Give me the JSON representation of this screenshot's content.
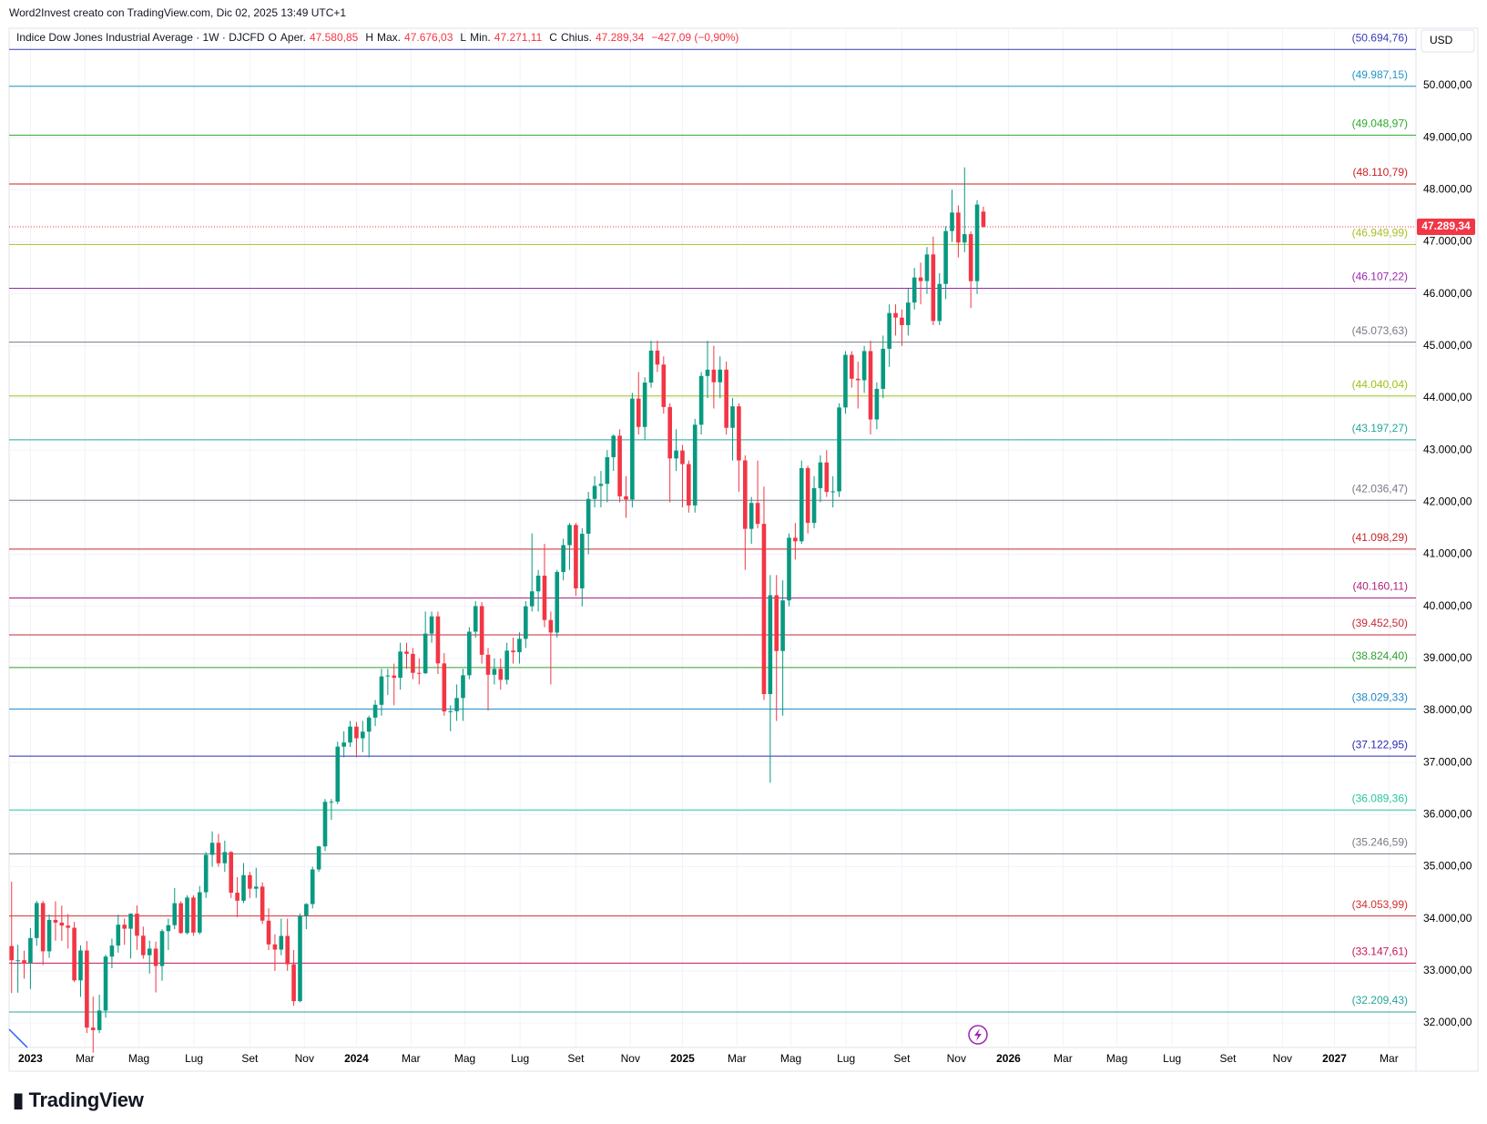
{
  "header": {
    "credit": "Word2Invest creato con TradingView.com, Dic 02, 2025 13:49 UTC+1"
  },
  "logo": "TradingView",
  "chart_data": {
    "type": "candlestick",
    "legend": {
      "name": "Indice Dow Jones Industrial Average · 1W · DJCFD",
      "items": [
        {
          "key": "O",
          "label": "Aper.",
          "value": "47.580,85"
        },
        {
          "key": "H",
          "label": "Max.",
          "value": "47.676,03"
        },
        {
          "key": "L",
          "label": "Min.",
          "value": "47.271,11"
        },
        {
          "key": "C",
          "label": "Chius.",
          "value": "47.289,34"
        }
      ],
      "change": "−427,09 (−0,90%)"
    },
    "currency": "USD",
    "up_color": "#089981",
    "down_color": "#f23645",
    "ylim": [
      31528,
      51102
    ],
    "xlim": [
      -0.4,
      224
    ],
    "yticks": [
      {
        "value": 32000,
        "label": "32.000,00"
      },
      {
        "value": 33000,
        "label": "33.000,00"
      },
      {
        "value": 34000,
        "label": "34.000,00"
      },
      {
        "value": 35000,
        "label": "35.000,00"
      },
      {
        "value": 36000,
        "label": "36.000,00"
      },
      {
        "value": 37000,
        "label": "37.000,00"
      },
      {
        "value": 38000,
        "label": "38.000,00"
      },
      {
        "value": 39000,
        "label": "39.000,00"
      },
      {
        "value": 40000,
        "label": "40.000,00"
      },
      {
        "value": 41000,
        "label": "41.000,00"
      },
      {
        "value": 42000,
        "label": "42.000,00"
      },
      {
        "value": 43000,
        "label": "43.000,00"
      },
      {
        "value": 44000,
        "label": "44.000,00"
      },
      {
        "value": 45000,
        "label": "45.000,00"
      },
      {
        "value": 46000,
        "label": "46.000,00"
      },
      {
        "value": 47000,
        "label": "47.000,00"
      },
      {
        "value": 48000,
        "label": "48.000,00"
      },
      {
        "value": 49000,
        "label": "49.000,00"
      },
      {
        "value": 50000,
        "label": "50.000,00"
      }
    ],
    "xticks": [
      {
        "value": 3,
        "label": "2023"
      },
      {
        "value": 11.7,
        "label": "Mar"
      },
      {
        "value": 20.3,
        "label": "Mag"
      },
      {
        "value": 29.1,
        "label": "Lug"
      },
      {
        "value": 38,
        "label": "Set"
      },
      {
        "value": 46.7,
        "label": "Nov"
      },
      {
        "value": 55,
        "label": "2024"
      },
      {
        "value": 63.7,
        "label": "Mar"
      },
      {
        "value": 72.3,
        "label": "Mag"
      },
      {
        "value": 81.1,
        "label": "Lug"
      },
      {
        "value": 90,
        "label": "Set"
      },
      {
        "value": 98.7,
        "label": "Nov"
      },
      {
        "value": 107,
        "label": "2025"
      },
      {
        "value": 115.7,
        "label": "Mar"
      },
      {
        "value": 124.3,
        "label": "Mag"
      },
      {
        "value": 133.1,
        "label": "Lug"
      },
      {
        "value": 142,
        "label": "Set"
      },
      {
        "value": 150.7,
        "label": "Nov"
      },
      {
        "value": 159,
        "label": "2026"
      },
      {
        "value": 167.7,
        "label": "Mar"
      },
      {
        "value": 176.3,
        "label": "Mag"
      },
      {
        "value": 185.1,
        "label": "Lug"
      },
      {
        "value": 194,
        "label": "Set"
      },
      {
        "value": 202.7,
        "label": "Nov"
      },
      {
        "value": 211,
        "label": "2027"
      },
      {
        "value": 219.7,
        "label": "Mar"
      }
    ],
    "levels": [
      {
        "value": 50694.76,
        "label": "(50.694,76)",
        "color": "#3a3ab8"
      },
      {
        "value": 49987.15,
        "label": "(49.987,15)",
        "color": "#2196c4"
      },
      {
        "value": 49048.97,
        "label": "(49.048,97)",
        "color": "#2ea82e"
      },
      {
        "value": 48110.79,
        "label": "(48.110,79)",
        "color": "#cc2222"
      },
      {
        "value": 46949.99,
        "label": "(46.949,99)",
        "color": "#a6c22a"
      },
      {
        "value": 46107.22,
        "label": "(46.107,22)",
        "color": "#9c27b0"
      },
      {
        "value": 45073.63,
        "label": "(45.073,63)",
        "color": "#787b86"
      },
      {
        "value": 44040.04,
        "label": "(44.040,04)",
        "color": "#9ac21a"
      },
      {
        "value": 43197.27,
        "label": "(43.197,27)",
        "color": "#26a69a"
      },
      {
        "value": 42036.47,
        "label": "(42.036,47)",
        "color": "#787b86"
      },
      {
        "value": 41098.29,
        "label": "(41.098,29)",
        "color": "#c62828"
      },
      {
        "value": 40160.11,
        "label": "(40.160,11)",
        "color": "#b0207c"
      },
      {
        "value": 39452.5,
        "label": "(39.452,50)",
        "color": "#c62838"
      },
      {
        "value": 38824.4,
        "label": "(38.824,40)",
        "color": "#30a030"
      },
      {
        "value": 38029.33,
        "label": "(38.029,33)",
        "color": "#2088c8"
      },
      {
        "value": 37122.95,
        "label": "(37.122,95)",
        "color": "#2a2ab0"
      },
      {
        "value": 36089.36,
        "label": "(36.089,36)",
        "color": "#26c6a0"
      },
      {
        "value": 35246.59,
        "label": "(35.246,59)",
        "color": "#787b86"
      },
      {
        "value": 34053.99,
        "label": "(34.053,99)",
        "color": "#d32f2f"
      },
      {
        "value": 33147.61,
        "label": "(33.147,61)",
        "color": "#c2185b"
      },
      {
        "value": 32209.43,
        "label": "(32.209,43)",
        "color": "#26a69a"
      }
    ],
    "last_price": {
      "value": 47289.34,
      "label": "47.289,34",
      "color": "#f23645"
    },
    "ohlc": [
      [
        33476,
        34712,
        32574,
        33203
      ],
      [
        33203,
        33500,
        32581,
        33204
      ],
      [
        33204,
        33387,
        32850,
        33147
      ],
      [
        33147,
        33820,
        32650,
        33630
      ],
      [
        33630,
        34343,
        33480,
        34302
      ],
      [
        34302,
        34342,
        33113,
        33375
      ],
      [
        33375,
        34082,
        33250,
        33978
      ],
      [
        33978,
        34335,
        33580,
        33926
      ],
      [
        33926,
        34252,
        33574,
        33869
      ],
      [
        33869,
        34092,
        33428,
        33827
      ],
      [
        33827,
        33940,
        32787,
        32817
      ],
      [
        32817,
        33491,
        32500,
        33391
      ],
      [
        33391,
        33572,
        31806,
        31910
      ],
      [
        31910,
        32504,
        31429,
        31862
      ],
      [
        31862,
        32540,
        31805,
        32238
      ],
      [
        32238,
        33311,
        32100,
        33274
      ],
      [
        33274,
        33620,
        33050,
        33485
      ],
      [
        33485,
        34082,
        33350,
        33886
      ],
      [
        33886,
        34000,
        33500,
        33809
      ],
      [
        33809,
        34104,
        33235,
        34098
      ],
      [
        34098,
        34257,
        33404,
        33674
      ],
      [
        33674,
        33850,
        33233,
        33301
      ],
      [
        33301,
        33580,
        32948,
        33427
      ],
      [
        33427,
        33560,
        32586,
        33093
      ],
      [
        33093,
        33800,
        32810,
        33763
      ],
      [
        33763,
        34000,
        33400,
        33877
      ],
      [
        33877,
        34589,
        33800,
        34299
      ],
      [
        34299,
        34335,
        33713,
        33727
      ],
      [
        33727,
        34450,
        33700,
        34408
      ],
      [
        34408,
        34450,
        33674,
        33735
      ],
      [
        33735,
        34630,
        33700,
        34509
      ],
      [
        34509,
        35280,
        34400,
        35228
      ],
      [
        35228,
        35679,
        35000,
        35459
      ],
      [
        35459,
        35630,
        35000,
        35066
      ],
      [
        35066,
        35500,
        34900,
        35281
      ],
      [
        35281,
        35300,
        34400,
        34501
      ],
      [
        34501,
        34800,
        34030,
        34347
      ],
      [
        34347,
        35070,
        34300,
        34838
      ],
      [
        34838,
        34900,
        34400,
        34577
      ],
      [
        34577,
        34979,
        34400,
        34618
      ],
      [
        34618,
        34700,
        33900,
        33964
      ],
      [
        33964,
        34200,
        33400,
        33508
      ],
      [
        33508,
        33700,
        33000,
        33408
      ],
      [
        33408,
        34000,
        33300,
        33670
      ],
      [
        33670,
        34000,
        33000,
        33127
      ],
      [
        33127,
        33400,
        32327,
        32418
      ],
      [
        32418,
        34100,
        32400,
        34061
      ],
      [
        34061,
        34300,
        33800,
        34283
      ],
      [
        34283,
        35000,
        34200,
        34947
      ],
      [
        34947,
        35400,
        34900,
        35390
      ],
      [
        35390,
        36300,
        35300,
        36246
      ],
      [
        36246,
        36300,
        35900,
        36248
      ],
      [
        36248,
        37400,
        36200,
        37306
      ],
      [
        37306,
        37600,
        37100,
        37385
      ],
      [
        37385,
        37800,
        37300,
        37690
      ],
      [
        37690,
        37780,
        37100,
        37466
      ],
      [
        37466,
        37800,
        37200,
        37593
      ],
      [
        37593,
        37900,
        37100,
        37863
      ],
      [
        37863,
        38200,
        37700,
        38109
      ],
      [
        38109,
        38800,
        37900,
        38654
      ],
      [
        38654,
        38800,
        38300,
        38671
      ],
      [
        38671,
        38900,
        38100,
        38628
      ],
      [
        38628,
        39300,
        38400,
        39131
      ],
      [
        39131,
        39300,
        38800,
        39087
      ],
      [
        39087,
        39200,
        38600,
        38723
      ],
      [
        38723,
        39000,
        38500,
        38715
      ],
      [
        38715,
        39900,
        38700,
        39476
      ],
      [
        39476,
        39900,
        39300,
        39807
      ],
      [
        39807,
        39900,
        38700,
        38904
      ],
      [
        38904,
        39100,
        37900,
        37983
      ],
      [
        37983,
        38100,
        37600,
        37986
      ],
      [
        37986,
        38500,
        37800,
        38240
      ],
      [
        38240,
        38800,
        37800,
        38676
      ],
      [
        38676,
        39600,
        38600,
        39513
      ],
      [
        39513,
        40100,
        39400,
        40004
      ],
      [
        40004,
        40080,
        38900,
        39070
      ],
      [
        39070,
        39200,
        38000,
        38686
      ],
      [
        38686,
        39000,
        38500,
        38799
      ],
      [
        38799,
        39000,
        38400,
        38589
      ],
      [
        38589,
        39300,
        38500,
        39150
      ],
      [
        39150,
        39400,
        38900,
        39119
      ],
      [
        39119,
        39500,
        38900,
        39376
      ],
      [
        39376,
        40100,
        39200,
        40001
      ],
      [
        40001,
        41400,
        39900,
        40288
      ],
      [
        40288,
        40700,
        39900,
        40589
      ],
      [
        40589,
        41200,
        39600,
        39737
      ],
      [
        39737,
        39900,
        38500,
        39497
      ],
      [
        39497,
        40700,
        39400,
        40660
      ],
      [
        40660,
        41300,
        40500,
        41175
      ],
      [
        41175,
        41600,
        40700,
        41563
      ],
      [
        41563,
        41600,
        40200,
        40345
      ],
      [
        40345,
        41500,
        40000,
        41394
      ],
      [
        41394,
        42200,
        41000,
        42063
      ],
      [
        42063,
        42500,
        41900,
        42313
      ],
      [
        42313,
        42600,
        41900,
        42352
      ],
      [
        42352,
        43000,
        42000,
        42864
      ],
      [
        42864,
        43300,
        42600,
        43276
      ],
      [
        43276,
        43400,
        42000,
        42114
      ],
      [
        42114,
        42500,
        41700,
        42052
      ],
      [
        42052,
        44100,
        41900,
        43989
      ],
      [
        43989,
        44500,
        43300,
        43445
      ],
      [
        43445,
        44400,
        43200,
        44297
      ],
      [
        44297,
        45100,
        44200,
        44911
      ],
      [
        44911,
        45100,
        44500,
        44643
      ],
      [
        44643,
        44800,
        43700,
        43828
      ],
      [
        43828,
        43900,
        42000,
        42840
      ],
      [
        42840,
        43400,
        42600,
        42992
      ],
      [
        42992,
        43100,
        41900,
        42732
      ],
      [
        42732,
        42800,
        41800,
        41938
      ],
      [
        41938,
        43600,
        41800,
        43488
      ],
      [
        43488,
        44500,
        43300,
        44424
      ],
      [
        44424,
        45100,
        44000,
        44545
      ],
      [
        44545,
        45000,
        43800,
        44303
      ],
      [
        44303,
        44800,
        44000,
        44546
      ],
      [
        44546,
        44700,
        43300,
        43428
      ],
      [
        43428,
        44000,
        42800,
        43841
      ],
      [
        43841,
        43900,
        42200,
        42802
      ],
      [
        42802,
        42900,
        40700,
        41488
      ],
      [
        41488,
        42100,
        41200,
        41985
      ],
      [
        41985,
        42800,
        41500,
        41584
      ],
      [
        41584,
        42300,
        38200,
        38315
      ],
      [
        38315,
        40600,
        36612,
        40213
      ],
      [
        40213,
        40600,
        37800,
        39142
      ],
      [
        39142,
        40500,
        37900,
        40114
      ],
      [
        40114,
        41400,
        40000,
        41317
      ],
      [
        41317,
        41600,
        40900,
        41249
      ],
      [
        41249,
        42800,
        41200,
        42655
      ],
      [
        42655,
        42700,
        41400,
        41603
      ],
      [
        41603,
        42500,
        41500,
        42270
      ],
      [
        42270,
        42900,
        42000,
        42763
      ],
      [
        42763,
        43000,
        42100,
        42198
      ],
      [
        42198,
        42500,
        41900,
        42207
      ],
      [
        42207,
        43900,
        42100,
        43819
      ],
      [
        43819,
        44900,
        43700,
        44829
      ],
      [
        44829,
        44900,
        44200,
        44371
      ],
      [
        44371,
        44700,
        43800,
        44342
      ],
      [
        44342,
        45000,
        44100,
        44902
      ],
      [
        44902,
        45100,
        43300,
        43589
      ],
      [
        43589,
        44300,
        43400,
        44176
      ],
      [
        44176,
        45200,
        44000,
        44946
      ],
      [
        44946,
        45800,
        44600,
        45632
      ],
      [
        45632,
        45800,
        45200,
        45545
      ],
      [
        45545,
        45700,
        45000,
        45401
      ],
      [
        45401,
        46100,
        45200,
        45834
      ],
      [
        45834,
        46500,
        45700,
        46315
      ],
      [
        46315,
        46600,
        45800,
        46247
      ],
      [
        46247,
        46900,
        46000,
        46758
      ],
      [
        46758,
        47100,
        45400,
        45480
      ],
      [
        45480,
        46400,
        45400,
        46191
      ],
      [
        46191,
        47300,
        45900,
        47207
      ],
      [
        47207,
        48000,
        47000,
        47563
      ],
      [
        47563,
        47700,
        46700,
        46987
      ],
      [
        46987,
        48431,
        46800,
        47147
      ],
      [
        47147,
        47200,
        45728,
        46245
      ],
      [
        46245,
        47800,
        46000,
        47716
      ],
      [
        47580.85,
        47676.03,
        47271.11,
        47289.34
      ]
    ]
  }
}
